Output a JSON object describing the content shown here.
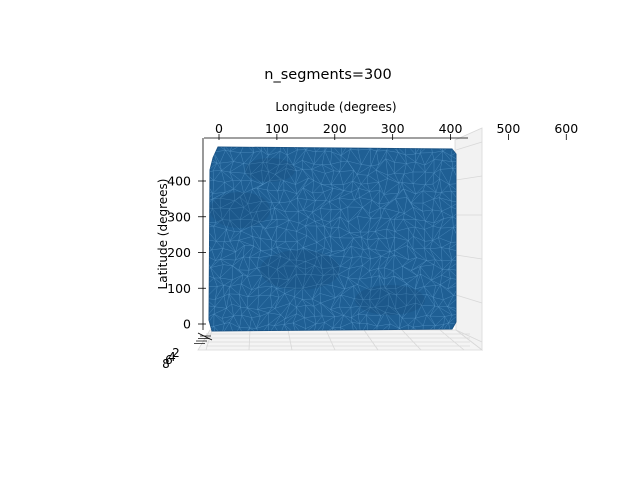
{
  "chart_data": {
    "type": "surface3d",
    "title": "n_segments=300",
    "xlabel": "Longitude (degrees)",
    "ylabel": "Latitude (degrees)",
    "zlabel": "",
    "x_ticks": [
      "0",
      "100",
      "200",
      "300",
      "400",
      "500",
      "600"
    ],
    "y_ticks": [
      "0",
      "100",
      "200",
      "300",
      "400"
    ],
    "z_ticks": [
      "2",
      "4",
      "6",
      "8"
    ],
    "xlim": [
      0,
      640
    ],
    "ylim": [
      0,
      480
    ],
    "surface_color": "#1f5f94",
    "edge_color": "#5c9bcc",
    "grid_color": "#d8d8d8",
    "view": "top-down"
  }
}
